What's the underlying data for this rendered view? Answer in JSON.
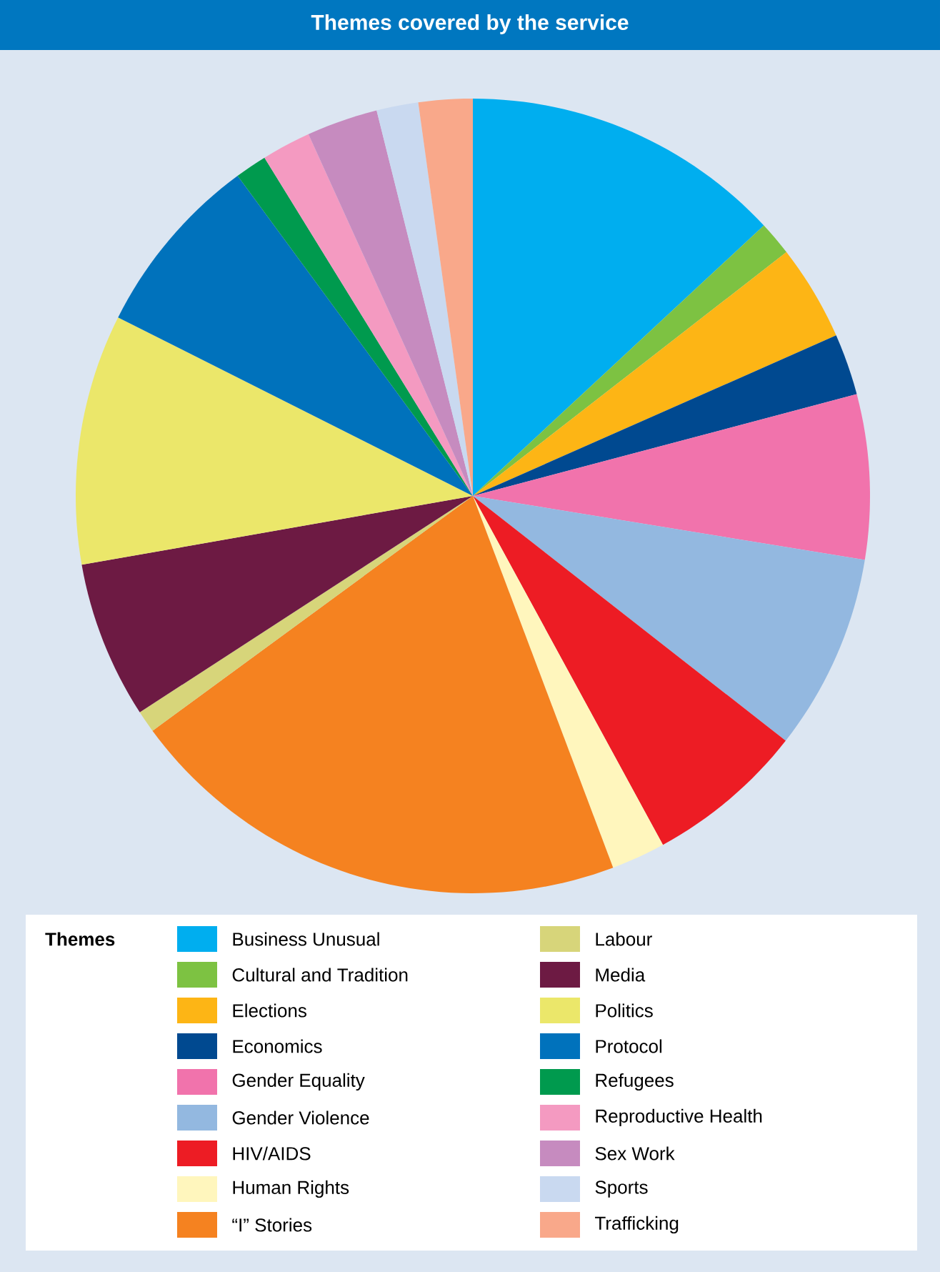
{
  "chart_data": {
    "type": "pie",
    "title": "Themes covered by the service",
    "legend_title": "Themes",
    "legend": "bottom",
    "categories": [
      "Business Unusual",
      "Cultural and Tradition",
      "Elections",
      "Economics",
      "Gender Equality",
      "Gender Violence",
      "HIV/AIDS",
      "Human Rights",
      "“I” Stories",
      "Labour",
      "Media",
      "Politics",
      "Protocol",
      "Refugees",
      "Reproductive Health",
      "Sex Work",
      "Sports",
      "Trafficking"
    ],
    "values": [
      13.1,
      1.4,
      3.9,
      2.5,
      6.7,
      8.0,
      6.5,
      2.2,
      20.7,
      0.9,
      6.4,
      10.2,
      7.5,
      1.3,
      2.0,
      2.9,
      1.7,
      2.2
    ],
    "colors": [
      "#00aeef",
      "#7dc242",
      "#fdb515",
      "#004990",
      "#f173ac",
      "#93b8e0",
      "#ed1c24",
      "#fff6bd",
      "#f58220",
      "#d7d57a",
      "#6d1a43",
      "#ebe76a",
      "#0072bc",
      "#009a4e",
      "#f49ac1",
      "#c68bbf",
      "#c9d9f0",
      "#f9a88a"
    ]
  }
}
